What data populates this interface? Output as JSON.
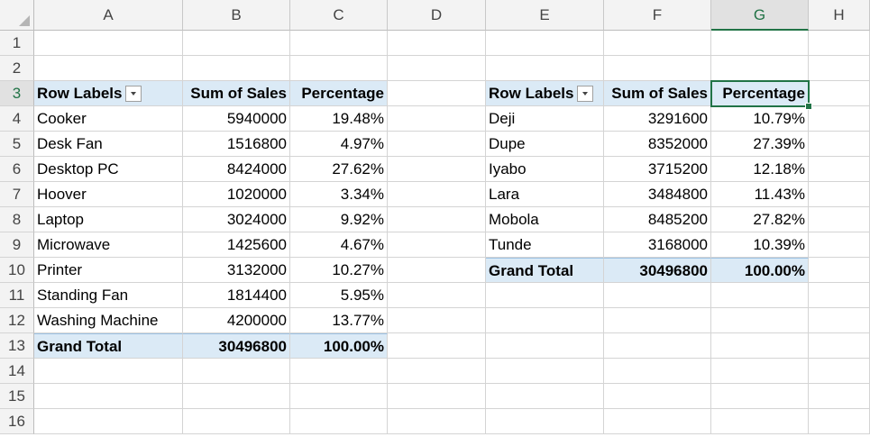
{
  "columns": [
    "A",
    "B",
    "C",
    "D",
    "E",
    "F",
    "G",
    "H"
  ],
  "rows": [
    "1",
    "2",
    "3",
    "4",
    "5",
    "6",
    "7",
    "8",
    "9",
    "10",
    "11",
    "12",
    "13",
    "14",
    "15",
    "16"
  ],
  "selected_cell": "G3",
  "pivot1": {
    "headers": [
      "Row Labels",
      "Sum of Sales",
      "Percentage"
    ],
    "rows": [
      [
        "Cooker",
        "5940000",
        "19.48%"
      ],
      [
        "Desk Fan",
        "1516800",
        "4.97%"
      ],
      [
        "Desktop PC",
        "8424000",
        "27.62%"
      ],
      [
        "Hoover",
        "1020000",
        "3.34%"
      ],
      [
        "Laptop",
        "3024000",
        "9.92%"
      ],
      [
        "Microwave",
        "1425600",
        "4.67%"
      ],
      [
        "Printer",
        "3132000",
        "10.27%"
      ],
      [
        "Standing Fan",
        "1814400",
        "5.95%"
      ],
      [
        "Washing Machine",
        "4200000",
        "13.77%"
      ]
    ],
    "total": [
      "Grand Total",
      "30496800",
      "100.00%"
    ]
  },
  "pivot2": {
    "headers": [
      "Row Labels",
      "Sum of Sales",
      "Percentage"
    ],
    "rows": [
      [
        "Deji",
        "3291600",
        "10.79%"
      ],
      [
        "Dupe",
        "8352000",
        "27.39%"
      ],
      [
        "Iyabo",
        "3715200",
        "12.18%"
      ],
      [
        "Lara",
        "3484800",
        "11.43%"
      ],
      [
        "Mobola",
        "8485200",
        "27.82%"
      ],
      [
        "Tunde",
        "3168000",
        "10.39%"
      ]
    ],
    "total": [
      "Grand Total",
      "30496800",
      "100.00%"
    ]
  },
  "colors": {
    "pivot_header_bg": "#dbeaf6",
    "selection": "#217346"
  }
}
